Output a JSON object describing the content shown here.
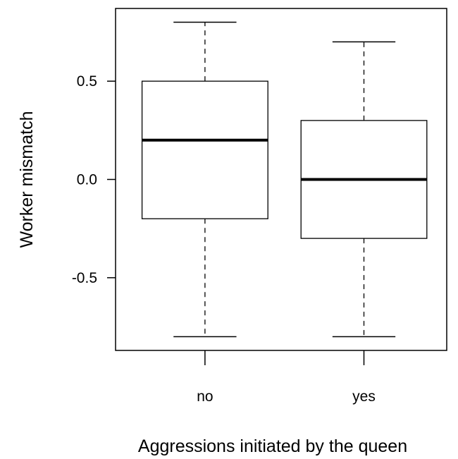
{
  "chart_data": {
    "type": "boxplot",
    "title": "",
    "xlabel": "Aggressions initiated by the queen",
    "ylabel": "Worker mismatch",
    "categories": [
      "no",
      "yes"
    ],
    "ylim": [
      -0.87,
      0.87
    ],
    "y_ticks": [
      -0.5,
      0.0,
      0.5
    ],
    "y_tick_labels": [
      "-0.5",
      "0.0",
      "0.5"
    ],
    "grid": false,
    "boxes": [
      {
        "category": "no",
        "min": -0.8,
        "q1": -0.2,
        "median": 0.2,
        "q3": 0.5,
        "max": 0.8
      },
      {
        "category": "yes",
        "min": -0.8,
        "q1": -0.3,
        "median": 0.0,
        "q3": 0.3,
        "max": 0.7
      }
    ]
  }
}
